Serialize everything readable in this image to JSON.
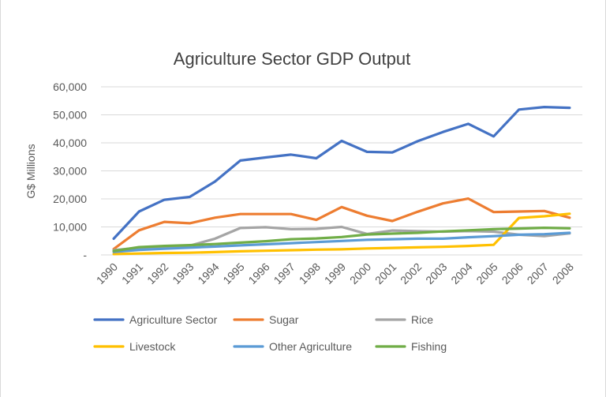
{
  "chart_data": {
    "type": "line",
    "title": "Agriculture Sector GDP Output",
    "ylabel": "G$ Millions",
    "xlabel": "",
    "ylim": [
      0,
      60000
    ],
    "yticks": [
      0,
      10000,
      20000,
      30000,
      40000,
      50000,
      60000
    ],
    "ytick_labels": [
      "-",
      "10,000",
      "20,000",
      "30,000",
      "40,000",
      "50,000",
      "60,000"
    ],
    "categories": [
      "1990",
      "1991",
      "1992",
      "1993",
      "1994",
      "1995",
      "1996",
      "1997",
      "1998",
      "1999",
      "2000",
      "2001",
      "2002",
      "2003",
      "2004",
      "2005",
      "2006",
      "2007",
      "2008"
    ],
    "grid": true,
    "legend_position": "bottom",
    "series": [
      {
        "name": "Agriculture Sector",
        "color": "#4472c4",
        "values": [
          5800,
          15500,
          19700,
          20700,
          26200,
          33700,
          34800,
          35800,
          34500,
          40700,
          36800,
          36600,
          40600,
          43900,
          46800,
          42300,
          51900,
          52800,
          52500
        ]
      },
      {
        "name": "Sugar",
        "color": "#ed7d31",
        "values": [
          2100,
          8800,
          11800,
          11300,
          13300,
          14600,
          14600,
          14600,
          12500,
          17100,
          14000,
          12100,
          15400,
          18400,
          20100,
          15300,
          15500,
          15700,
          13300
        ]
      },
      {
        "name": "Rice",
        "color": "#a5a5a5",
        "values": [
          1700,
          2600,
          2700,
          3300,
          5800,
          9600,
          9900,
          9200,
          9300,
          10000,
          7500,
          8700,
          8500,
          8300,
          8500,
          8300,
          7200,
          6700,
          7700
        ]
      },
      {
        "name": "Livestock",
        "color": "#ffc000",
        "values": [
          300,
          500,
          700,
          800,
          1000,
          1300,
          1500,
          1700,
          1900,
          2000,
          2300,
          2500,
          2700,
          2900,
          3200,
          3600,
          13200,
          13800,
          14700
        ]
      },
      {
        "name": "Other Agriculture",
        "color": "#5b9bd5",
        "values": [
          1100,
          1800,
          2200,
          2600,
          3000,
          3400,
          3800,
          4200,
          4600,
          5000,
          5400,
          5600,
          5800,
          5800,
          6300,
          6700,
          7200,
          7400,
          7900
        ]
      },
      {
        "name": "Fishing",
        "color": "#70ad47",
        "values": [
          1400,
          2800,
          3200,
          3500,
          3900,
          4400,
          4900,
          5600,
          5900,
          6400,
          7300,
          7600,
          7900,
          8400,
          8800,
          9200,
          9400,
          9700,
          9500
        ]
      }
    ]
  }
}
